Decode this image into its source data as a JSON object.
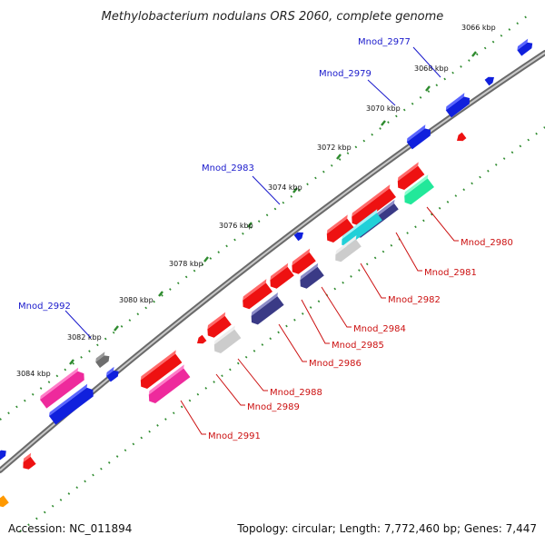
{
  "title": "Methylobacterium nodulans ORS 2060, complete genome",
  "footer": {
    "accession": "Accession: NC_011894",
    "summary": "Topology: circular; Length: 7,772,460 bp; Genes: 7,447"
  },
  "colors": {
    "backbone": "#8a8a8a",
    "tick_dots": "#2e8b2e",
    "label_blue": "#1a1acc",
    "label_red": "#cc1111",
    "gene_red": "#ee1111",
    "gene_blue": "#1020dd",
    "gene_pink": "#ee2a9c",
    "gene_purple": "#3a3a86",
    "gene_gray": "#6e6e6e",
    "gene_lightgray": "#cccccc",
    "gene_cyan": "#22d0d8",
    "gene_teal": "#22e89a",
    "gene_orange": "#ff9900"
  },
  "ticks": [
    "3066 kbp",
    "3068 kbp",
    "3070 kbp",
    "3072 kbp",
    "3074 kbp",
    "3076 kbp",
    "3078 kbp",
    "3080 kbp",
    "3082 kbp",
    "3084 kbp"
  ],
  "gene_labels_outer": [
    "Mnod_2977",
    "Mnod_2979",
    "Mnod_2983",
    "Mnod_2992"
  ],
  "gene_labels_inner": [
    "Mnod_2980",
    "Mnod_2981",
    "Mnod_2982",
    "Mnod_2984",
    "Mnod_2985",
    "Mnod_2986",
    "Mnod_2988",
    "Mnod_2989",
    "Mnod_2991"
  ]
}
